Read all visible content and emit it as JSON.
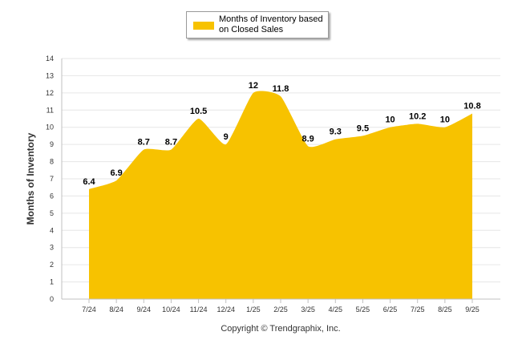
{
  "chart_data": {
    "type": "area",
    "categories": [
      "7/24",
      "8/24",
      "9/24",
      "10/24",
      "11/24",
      "12/24",
      "1/25",
      "2/25",
      "3/25",
      "4/25",
      "5/25",
      "6/25",
      "7/25",
      "8/25",
      "9/25"
    ],
    "series": [
      {
        "name": "Months of Inventory based on Closed Sales",
        "values": [
          6.4,
          6.9,
          8.7,
          8.7,
          10.5,
          9,
          12,
          11.8,
          8.9,
          9.3,
          9.5,
          10,
          10.2,
          10,
          10.8
        ],
        "labels": [
          "6.4",
          "6.9",
          "8.7",
          "8.7",
          "10.5",
          "9",
          "12",
          "11.8",
          "8.9",
          "9.3",
          "9.5",
          "10",
          "10.2",
          "10",
          "10.8"
        ]
      }
    ],
    "legend": {
      "label": "Months of Inventory based on Closed Sales",
      "position": "top-center"
    },
    "ylabel": "Months of Inventory",
    "xlabel": "",
    "ylim": [
      0,
      14
    ],
    "yticks": [
      "0",
      "1",
      "2",
      "3",
      "4",
      "5",
      "6",
      "7",
      "8",
      "9",
      "10",
      "11",
      "12",
      "13",
      "14"
    ],
    "grid": true,
    "credit": "Copyright © Trendgraphix, Inc."
  },
  "colors": {
    "area": "#F7C200",
    "grid": "#e6e6e6",
    "axis": "#c0c0c0"
  }
}
